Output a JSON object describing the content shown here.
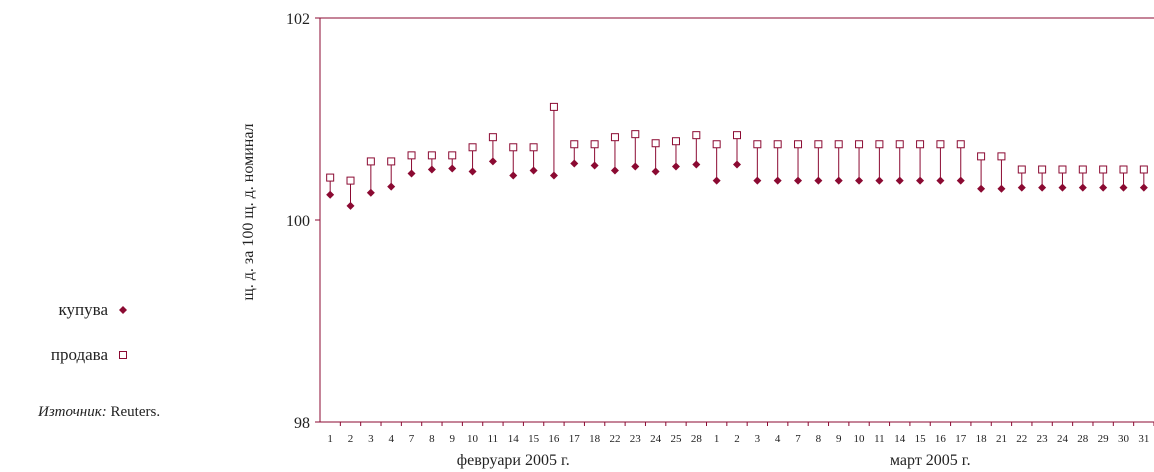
{
  "legend": {
    "buy_label": "купува",
    "sell_label": "продава"
  },
  "source": {
    "prefix": "Източник:",
    "text": " Reuters."
  },
  "colors": {
    "series": "#8b0a32",
    "axis": "#8b0a32"
  },
  "chart_data": {
    "type": "scatter",
    "ylabel": "щ. д. за 100 щ. д. номинал",
    "ylim": [
      98,
      102
    ],
    "yticks": [
      "98",
      "100",
      "102"
    ],
    "grid": false,
    "legend_position": "left",
    "groups": [
      {
        "label": "февруари 2005 г.",
        "days": [
          "1",
          "2",
          "3",
          "4",
          "7",
          "8",
          "9",
          "10",
          "11",
          "14",
          "15",
          "16",
          "17",
          "18",
          "22",
          "23",
          "24",
          "25",
          "28"
        ]
      },
      {
        "label": "март 2005 г.",
        "days": [
          "1",
          "2",
          "3",
          "4",
          "7",
          "8",
          "9",
          "10",
          "11",
          "14",
          "15",
          "16",
          "17",
          "18",
          "21",
          "22",
          "23",
          "24",
          "28",
          "29",
          "30",
          "31"
        ]
      }
    ],
    "series": [
      {
        "name": "купува",
        "marker": "diamond-filled",
        "values": [
          100.25,
          100.14,
          100.27,
          100.33,
          100.46,
          100.5,
          100.51,
          100.48,
          100.58,
          100.44,
          100.49,
          100.44,
          100.56,
          100.54,
          100.49,
          100.53,
          100.48,
          100.53,
          100.55,
          100.39,
          100.55,
          100.39,
          100.39,
          100.39,
          100.39,
          100.39,
          100.39,
          100.39,
          100.39,
          100.39,
          100.39,
          100.39,
          100.31,
          100.31,
          100.32,
          100.32,
          100.32,
          100.32,
          100.32,
          100.32,
          100.32
        ]
      },
      {
        "name": "продава",
        "marker": "square-open",
        "values": [
          100.42,
          100.39,
          100.58,
          100.58,
          100.64,
          100.64,
          100.64,
          100.72,
          100.82,
          100.72,
          100.72,
          101.12,
          100.75,
          100.75,
          100.82,
          100.85,
          100.76,
          100.78,
          100.84,
          100.75,
          100.84,
          100.75,
          100.75,
          100.75,
          100.75,
          100.75,
          100.75,
          100.75,
          100.75,
          100.75,
          100.75,
          100.75,
          100.63,
          100.63,
          100.5,
          100.5,
          100.5,
          100.5,
          100.5,
          100.5,
          100.5
        ]
      }
    ]
  }
}
